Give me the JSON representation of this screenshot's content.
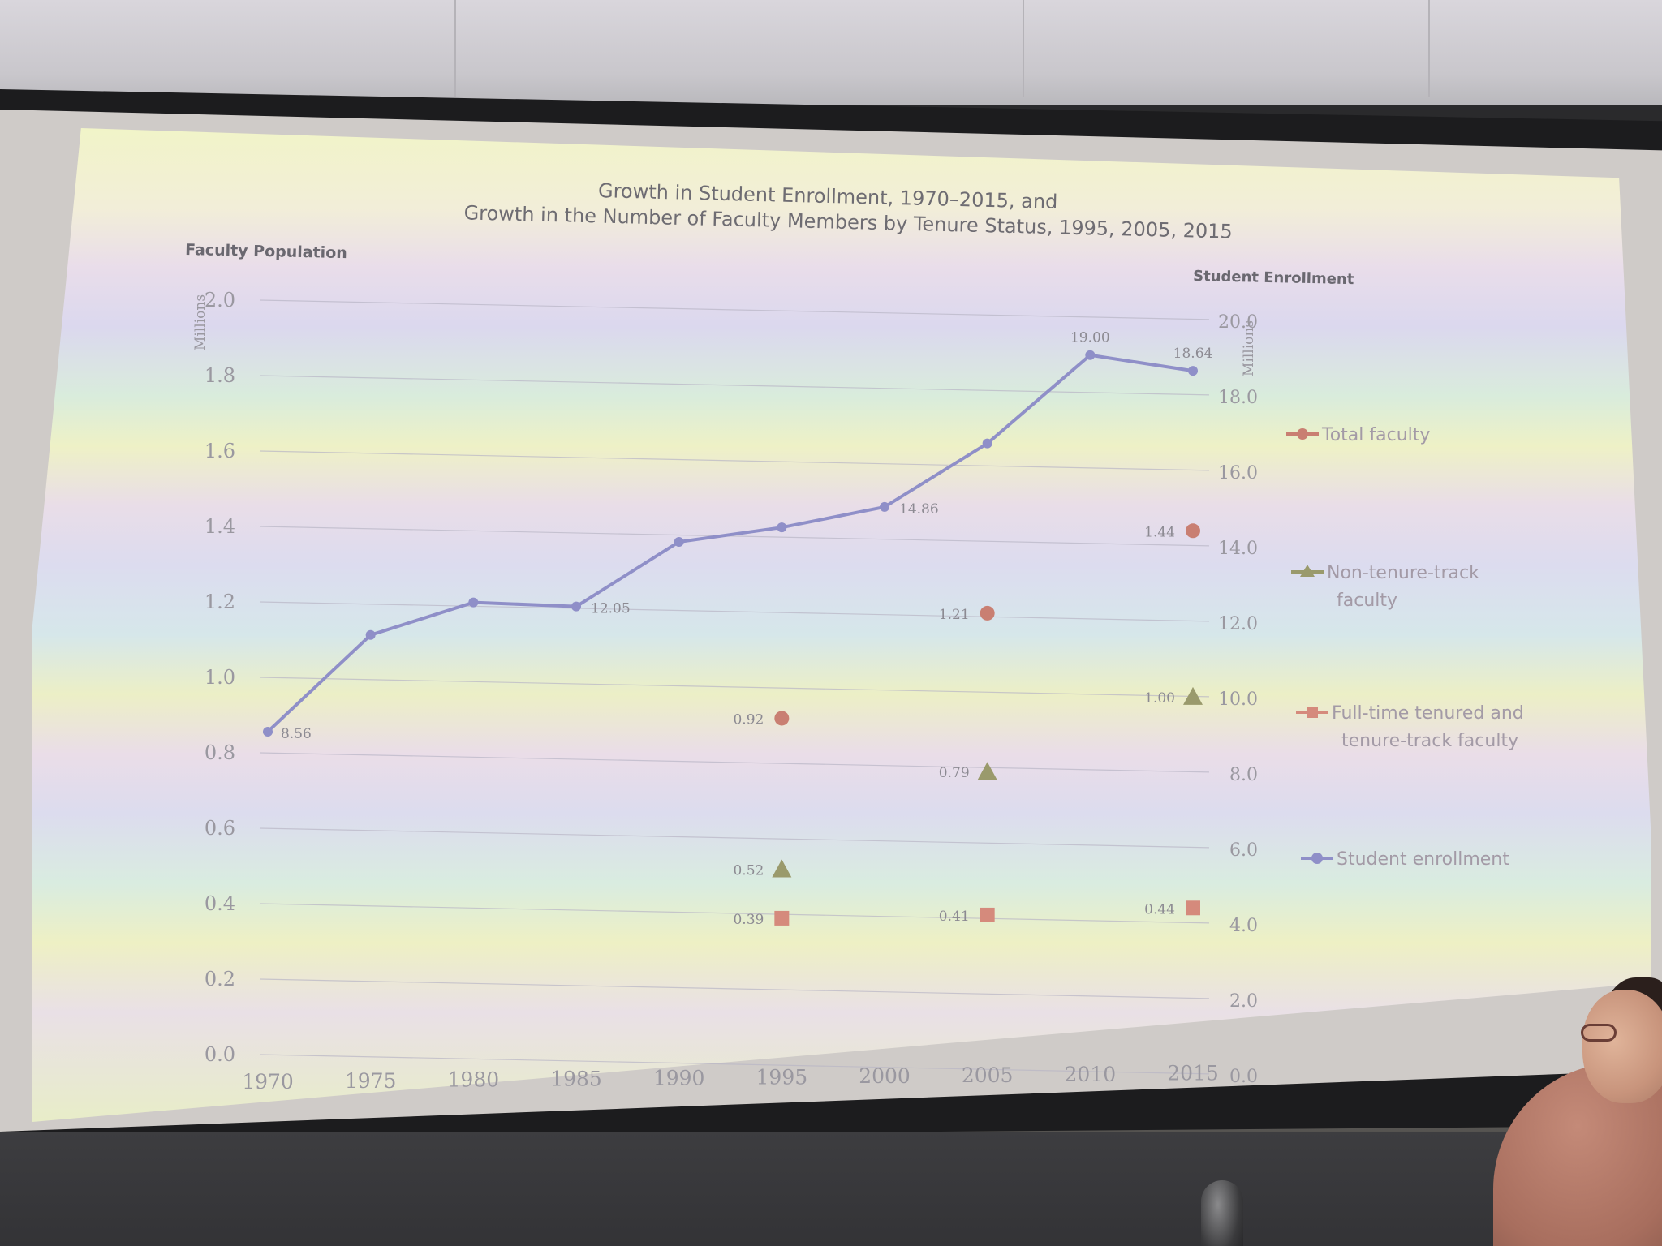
{
  "chart_data": {
    "type": "line",
    "title": "Growth in Student Enrollment, 1970–2015, and",
    "subtitle": "Growth in the Number of Faculty Members by Tenure Status, 1995, 2005, 2015",
    "y_left": {
      "label": "Faculty Population",
      "units": "Millions",
      "ticks": [
        "0.0",
        "0.2",
        "0.4",
        "0.6",
        "0.8",
        "1.0",
        "1.2",
        "1.4",
        "1.6",
        "1.8",
        "2.0"
      ],
      "ylim": [
        0,
        2.0
      ]
    },
    "y_right": {
      "label": "Student Enrollment",
      "units": "Millions",
      "ticks": [
        "0.0",
        "2.0",
        "4.0",
        "6.0",
        "8.0",
        "10.0",
        "12.0",
        "14.0",
        "16.0",
        "18.0",
        "20.0"
      ],
      "ylim": [
        0,
        20.0
      ]
    },
    "x_ticks": [
      "1970",
      "1975",
      "1980",
      "1985",
      "1990",
      "1995",
      "2000",
      "2005",
      "2010",
      "2015"
    ],
    "xlim": [
      1970,
      2015
    ],
    "grid": true,
    "legend_position": "right",
    "series": [
      {
        "name": "Student enrollment",
        "axis": "right",
        "marker": "circle-line",
        "color": "#8f8fc8",
        "x": [
          1970,
          1975,
          1980,
          1985,
          1990,
          1995,
          2000,
          2005,
          2010,
          2015
        ],
        "y": [
          8.56,
          11.18,
          12.1,
          12.05,
          13.82,
          14.26,
          14.86,
          16.6,
          19.0,
          18.64
        ],
        "labels": [
          "8.56",
          "",
          "",
          "12.05",
          "",
          "",
          "14.86",
          "",
          "19.00",
          "18.64"
        ]
      },
      {
        "name": "Total faculty",
        "axis": "left",
        "marker": "circle",
        "color": "#c97f72",
        "x": [
          1995,
          2005,
          2015
        ],
        "y": [
          0.92,
          1.21,
          1.44
        ],
        "labels": [
          "0.92",
          "1.21",
          "1.44"
        ]
      },
      {
        "name": "Non-tenure-track faculty",
        "axis": "left",
        "marker": "triangle",
        "color": "#9a9a6c",
        "x": [
          1995,
          2005,
          2015
        ],
        "y": [
          0.52,
          0.79,
          1.0
        ],
        "labels": [
          "0.52",
          "0.79",
          "1.00"
        ]
      },
      {
        "name": "Full-time tenured and tenure-track faculty",
        "axis": "left",
        "marker": "square",
        "color": "#d58a7c",
        "x": [
          1995,
          2005,
          2015
        ],
        "y": [
          0.39,
          0.41,
          0.44
        ],
        "labels": [
          "0.39",
          "0.41",
          "0.44"
        ]
      }
    ],
    "legend": [
      {
        "label_lines": [
          "Total faculty"
        ],
        "marker": "circle",
        "color": "#c97f72"
      },
      {
        "label_lines": [
          "Non-tenure-track",
          "faculty"
        ],
        "marker": "triangle",
        "color": "#9a9a6c"
      },
      {
        "label_lines": [
          "Full-time tenured and",
          "tenure-track faculty"
        ],
        "marker": "square",
        "color": "#d58a7c"
      },
      {
        "label_lines": [
          "Student enrollment"
        ],
        "marker": "circle",
        "color": "#8f8fc8"
      }
    ]
  }
}
